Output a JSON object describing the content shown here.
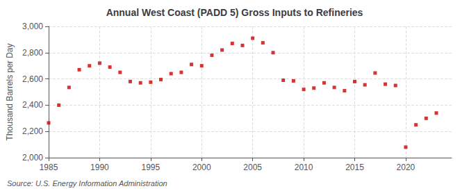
{
  "chart_data": {
    "type": "scatter",
    "title": "Annual West Coast (PADD 5) Gross Inputs to Refineries",
    "ylabel": "Thousand Barrels per Day",
    "annotations": [
      "Source: U.S. Energy Information Administration"
    ],
    "x": [
      1985,
      1986,
      1987,
      1988,
      1989,
      1990,
      1991,
      1992,
      1993,
      1994,
      1995,
      1996,
      1997,
      1998,
      1999,
      2000,
      2001,
      2002,
      2003,
      2004,
      2005,
      2006,
      2007,
      2008,
      2009,
      2010,
      2011,
      2012,
      2013,
      2014,
      2015,
      2016,
      2017,
      2018,
      2019,
      2020,
      2021,
      2022,
      2023
    ],
    "values": [
      2265,
      2400,
      2535,
      2670,
      2700,
      2720,
      2690,
      2650,
      2580,
      2570,
      2575,
      2595,
      2640,
      2650,
      2710,
      2700,
      2780,
      2820,
      2870,
      2855,
      2910,
      2875,
      2800,
      2590,
      2585,
      2520,
      2530,
      2570,
      2535,
      2510,
      2580,
      2555,
      2645,
      2560,
      2550,
      2080,
      2250,
      2300,
      2340
    ],
    "color": "#cc0000",
    "marker": "square",
    "xlim": [
      1985,
      2024.5
    ],
    "xticks": [
      1985,
      1990,
      1995,
      2000,
      2005,
      2010,
      2015,
      2020
    ],
    "ylim": [
      2000,
      3000
    ],
    "yticks": [
      {
        "value": 2000,
        "label": "2,000"
      },
      {
        "value": 2200,
        "label": "2,200"
      },
      {
        "value": 2400,
        "label": "2,400"
      },
      {
        "value": 2600,
        "label": "2,600"
      },
      {
        "value": 2800,
        "label": "2,800"
      },
      {
        "value": 3000,
        "label": "3,000"
      }
    ],
    "grid": true
  }
}
